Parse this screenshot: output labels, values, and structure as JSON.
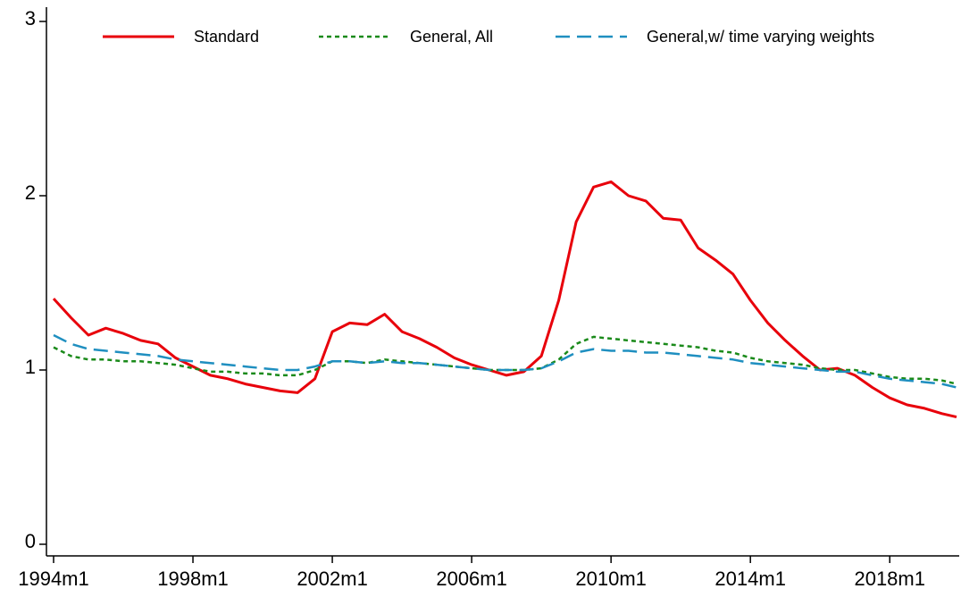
{
  "chart_data": {
    "type": "line",
    "x": [
      "1994m1",
      "1994m7",
      "1995m1",
      "1995m7",
      "1996m1",
      "1996m7",
      "1997m1",
      "1997m7",
      "1998m1",
      "1998m7",
      "1999m1",
      "1999m7",
      "2000m1",
      "2000m7",
      "2001m1",
      "2001m7",
      "2002m1",
      "2002m7",
      "2003m1",
      "2003m7",
      "2004m1",
      "2004m7",
      "2005m1",
      "2005m7",
      "2006m1",
      "2006m7",
      "2007m1",
      "2007m7",
      "2008m1",
      "2008m7",
      "2009m1",
      "2009m7",
      "2010m1",
      "2010m7",
      "2011m1",
      "2011m7",
      "2012m1",
      "2012m7",
      "2013m1",
      "2013m7",
      "2014m1",
      "2014m7",
      "2015m1",
      "2015m7",
      "2016m1",
      "2016m7",
      "2017m1",
      "2017m7",
      "2018m1",
      "2018m7",
      "2019m1",
      "2019m7",
      "2019m12"
    ],
    "series": [
      {
        "name": "Standard",
        "color": "#e8000b",
        "line_style": "solid",
        "values": [
          1.41,
          1.3,
          1.2,
          1.24,
          1.21,
          1.17,
          1.15,
          1.07,
          1.02,
          0.97,
          0.95,
          0.92,
          0.9,
          0.88,
          0.87,
          0.95,
          1.22,
          1.27,
          1.26,
          1.32,
          1.22,
          1.18,
          1.13,
          1.07,
          1.03,
          1.0,
          0.97,
          0.99,
          1.08,
          1.4,
          1.85,
          2.05,
          2.08,
          2.0,
          1.97,
          1.87,
          1.86,
          1.7,
          1.63,
          1.55,
          1.4,
          1.27,
          1.17,
          1.08,
          1.0,
          1.01,
          0.97,
          0.9,
          0.84,
          0.8,
          0.78,
          0.75,
          0.73
        ]
      },
      {
        "name": "General, All",
        "color": "#1a8a1a",
        "line_style": "dotted",
        "values": [
          1.13,
          1.08,
          1.06,
          1.06,
          1.05,
          1.05,
          1.04,
          1.03,
          1.01,
          0.99,
          0.99,
          0.98,
          0.98,
          0.97,
          0.97,
          1.0,
          1.05,
          1.05,
          1.04,
          1.06,
          1.05,
          1.04,
          1.03,
          1.02,
          1.01,
          1.0,
          1.0,
          1.0,
          1.01,
          1.06,
          1.15,
          1.19,
          1.18,
          1.17,
          1.16,
          1.15,
          1.14,
          1.13,
          1.11,
          1.1,
          1.07,
          1.05,
          1.04,
          1.03,
          1.01,
          1.0,
          1.0,
          0.98,
          0.96,
          0.95,
          0.95,
          0.94,
          0.92
        ]
      },
      {
        "name": "General,w/ time varying weights",
        "color": "#1f8fc0",
        "line_style": "dashed",
        "values": [
          1.2,
          1.15,
          1.12,
          1.11,
          1.1,
          1.09,
          1.08,
          1.06,
          1.05,
          1.04,
          1.03,
          1.02,
          1.01,
          1.0,
          1.0,
          1.02,
          1.05,
          1.05,
          1.04,
          1.05,
          1.04,
          1.04,
          1.03,
          1.02,
          1.01,
          1.0,
          1.0,
          1.0,
          1.01,
          1.05,
          1.1,
          1.12,
          1.11,
          1.11,
          1.1,
          1.1,
          1.09,
          1.08,
          1.07,
          1.06,
          1.04,
          1.03,
          1.02,
          1.01,
          1.0,
          0.99,
          0.99,
          0.97,
          0.95,
          0.94,
          0.93,
          0.92,
          0.9
        ]
      }
    ],
    "xlim": [
      "1994m1",
      "2019m12"
    ],
    "xticks": [
      "1994m1",
      "1998m1",
      "2002m1",
      "2006m1",
      "2010m1",
      "2014m1",
      "2018m1"
    ],
    "ylim": [
      0,
      3
    ],
    "yticks": [
      0,
      1,
      2,
      3
    ],
    "grid": false,
    "legend": "top"
  }
}
